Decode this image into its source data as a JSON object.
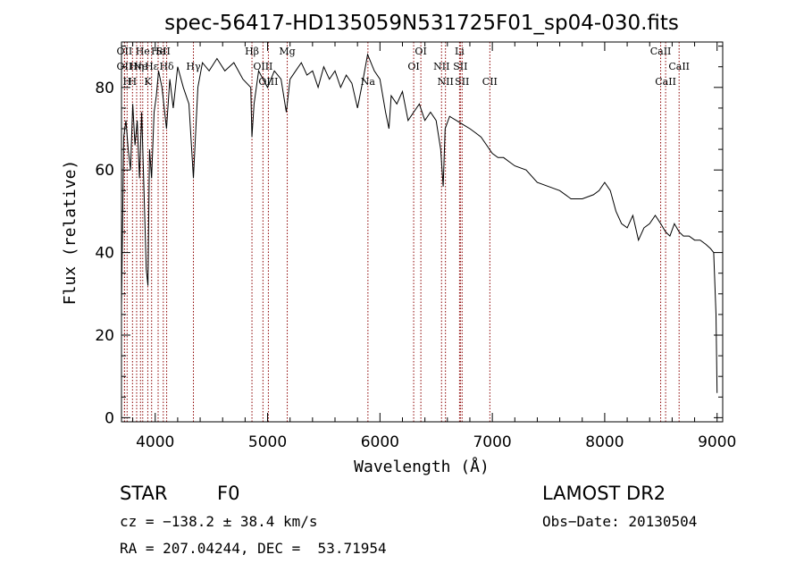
{
  "chart_data": {
    "type": "line",
    "title": "spec-56417-HD135059N531725F01_sp04-030.fits",
    "xlabel": "Wavelength (Å)",
    "ylabel": "Flux (relative)",
    "xlim": [
      3700,
      9050
    ],
    "ylim": [
      -1,
      91
    ],
    "xticks": [
      4000,
      5000,
      6000,
      7000,
      8000,
      9000
    ],
    "yticks": [
      0,
      20,
      40,
      60,
      80
    ],
    "grid": false,
    "series": [
      {
        "name": "spectrum",
        "x": [
          3700,
          3720,
          3740,
          3760,
          3780,
          3800,
          3820,
          3840,
          3860,
          3880,
          3900,
          3920,
          3935,
          3950,
          3968,
          3990,
          4010,
          4030,
          4060,
          4101,
          4130,
          4160,
          4200,
          4250,
          4300,
          4340,
          4380,
          4420,
          4480,
          4550,
          4620,
          4700,
          4780,
          4850,
          4861,
          4880,
          4920,
          4960,
          5000,
          5060,
          5120,
          5167,
          5200,
          5250,
          5300,
          5350,
          5400,
          5450,
          5500,
          5550,
          5600,
          5650,
          5700,
          5750,
          5800,
          5850,
          5890,
          5950,
          6000,
          6050,
          6080,
          6100,
          6150,
          6200,
          6250,
          6300,
          6350,
          6400,
          6450,
          6500,
          6540,
          6563,
          6580,
          6620,
          6680,
          6740,
          6800,
          6850,
          6900,
          6950,
          7000,
          7050,
          7100,
          7150,
          7200,
          7300,
          7400,
          7500,
          7600,
          7700,
          7800,
          7900,
          7950,
          8000,
          8050,
          8080,
          8100,
          8150,
          8200,
          8250,
          8300,
          8350,
          8400,
          8450,
          8498,
          8542,
          8580,
          8620,
          8662,
          8700,
          8750,
          8800,
          8850,
          8900,
          8940,
          8970,
          8990,
          9000
        ],
        "values": [
          27,
          68,
          72,
          65,
          60,
          76,
          66,
          72,
          58,
          74,
          55,
          36,
          32,
          65,
          58,
          74,
          78,
          84,
          80,
          70,
          82,
          75,
          85,
          80,
          76,
          58,
          80,
          86,
          84,
          87,
          84,
          86,
          82,
          80,
          68,
          76,
          84,
          82,
          80,
          84,
          82,
          74,
          82,
          84,
          86,
          83,
          84,
          80,
          85,
          82,
          84,
          80,
          83,
          81,
          75,
          82,
          88,
          84,
          82,
          74,
          70,
          78,
          76,
          79,
          72,
          74,
          76,
          72,
          74,
          72,
          65,
          56,
          70,
          73,
          72,
          71,
          70,
          69,
          68,
          66,
          64,
          63,
          63,
          62,
          61,
          60,
          57,
          56,
          55,
          53,
          53,
          54,
          55,
          57,
          55,
          52,
          50,
          47,
          46,
          49,
          43,
          46,
          47,
          49,
          47,
          45,
          44,
          47,
          45,
          44,
          44,
          43,
          43,
          42,
          41,
          40,
          25,
          6
        ]
      }
    ],
    "lines": [
      {
        "wl": 3727,
        "label": "OII",
        "row": 1
      },
      {
        "wl": 3727,
        "label": "OII",
        "row": 2
      },
      {
        "wl": 3750,
        "label": "H",
        "row": 3
      },
      {
        "wl": 3798,
        "label": "H",
        "row": 3
      },
      {
        "wl": 3835,
        "label": "Hη",
        "row": 2
      },
      {
        "wl": 3869,
        "label": "Ne",
        "row": 2
      },
      {
        "wl": 3889,
        "label": "He",
        "row": 1
      },
      {
        "wl": 3934,
        "label": "K",
        "row": 3
      },
      {
        "wl": 3968,
        "label": "Hε",
        "row": 2
      },
      {
        "wl": 4026,
        "label": "He",
        "row": 1
      },
      {
        "wl": 4072,
        "label": "SII",
        "row": 1
      },
      {
        "wl": 4102,
        "label": "Hδ",
        "row": 2
      },
      {
        "wl": 4340,
        "label": "Hγ",
        "row": 2
      },
      {
        "wl": 4861,
        "label": "Hβ",
        "row": 1
      },
      {
        "wl": 4959,
        "label": "OIII",
        "row": 2
      },
      {
        "wl": 5007,
        "label": "OIII",
        "row": 3
      },
      {
        "wl": 5175,
        "label": "Mg",
        "row": 1
      },
      {
        "wl": 5893,
        "label": "Na",
        "row": 3
      },
      {
        "wl": 6300,
        "label": "OI",
        "row": 2
      },
      {
        "wl": 6364,
        "label": "OI",
        "row": 1
      },
      {
        "wl": 6548,
        "label": "NII",
        "row": 2
      },
      {
        "wl": 6583,
        "label": "NII",
        "row": 3
      },
      {
        "wl": 6708,
        "label": "Li",
        "row": 1
      },
      {
        "wl": 6716,
        "label": "SII",
        "row": 2
      },
      {
        "wl": 6731,
        "label": "SII",
        "row": 3
      },
      {
        "wl": 6978,
        "label": "CII",
        "row": 3
      },
      {
        "wl": 8498,
        "label": "CaII",
        "row": 1
      },
      {
        "wl": 8542,
        "label": "CaII",
        "row": 3
      },
      {
        "wl": 8662,
        "label": "CaII",
        "row": 2
      }
    ]
  },
  "info": {
    "object_type": "STAR",
    "subclass": "F0",
    "survey": "LAMOST DR2",
    "velocity": "cz = −138.2 ± 38.4 km/s",
    "obs_date": "Obs−Date: 20130504",
    "coords": "RA = 207.04244, DEC =  53.71954"
  },
  "colors": {
    "spectrum": "#000000",
    "line_markers": "#8b0000",
    "axes": "#000000",
    "background": "#ffffff"
  }
}
